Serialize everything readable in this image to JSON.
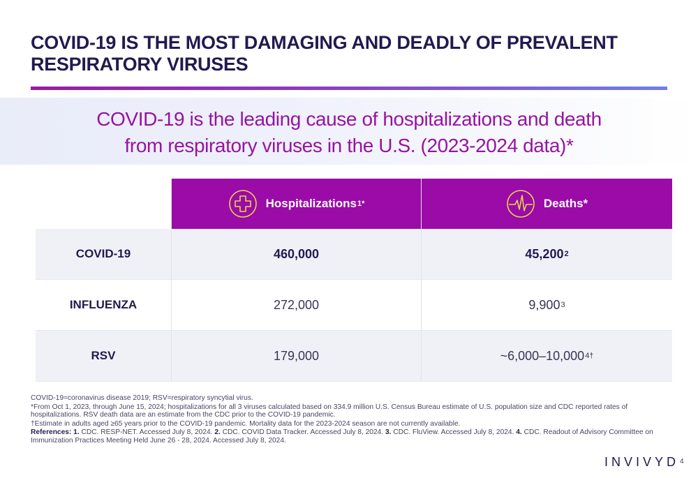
{
  "slide": {
    "title": "COVID-19 IS THE MOST DAMAGING AND DEADLY OF PREVALENT RESPIRATORY VIRUSES",
    "subtitle_line1": "COVID-19 is the leading cause of hospitalizations and death",
    "subtitle_line2": "from respiratory viruses in the U.S. (2023-2024 data)*",
    "colors": {
      "accent_purple": "#9a0ba8",
      "navy": "#23194f",
      "icon_yellow": "#e8d44a"
    }
  },
  "table": {
    "headers": [
      {
        "label": "Hospitalizations",
        "sup": "1*",
        "icon": "medical-cross-icon"
      },
      {
        "label": "Deaths*",
        "sup": "",
        "icon": "heartbeat-icon"
      }
    ],
    "rows": [
      {
        "virus": "COVID-19",
        "hospitalizations": "460,000",
        "deaths": "45,200",
        "deaths_sup": "2"
      },
      {
        "virus": "INFLUENZA",
        "hospitalizations": "272,000",
        "deaths": "9,900",
        "deaths_sup": "3"
      },
      {
        "virus": "RSV",
        "hospitalizations": "179,000",
        "deaths": "~6,000–10,000",
        "deaths_sup": "4†"
      }
    ]
  },
  "footnotes": {
    "abbrev": "COVID-19=coronavirus disease 2019; RSV=respiratory syncytial virus.",
    "star": "*From Oct 1, 2023, through June 15, 2024; hospitalizations for all 3 viruses calculated based on 334.9 million U.S. Census Bureau estimate of U.S. population size and CDC reported rates of hospitalizations. RSV death data are an estimate from the CDC prior to the COVID-19 pandemic.",
    "dagger": "†Estimate in adults aged ≥65 years prior to the COVID-19 pandemic. Mortality data for the 2023-2024 season are not currently available.",
    "references_label": "References:",
    "ref1_num": "1.",
    "ref1": "CDC. RESP-NET. Accessed July 8, 2024.",
    "ref2_num": "2.",
    "ref2": "CDC. COVID Data Tracker. Accessed July 8, 2024.",
    "ref3_num": "3.",
    "ref3": "CDC. FluView. Accessed July 8, 2024.",
    "ref4_num": "4.",
    "ref4": "CDC. Readout of Advisory Committee on Immunization Practices Meeting Held June 26 - 28, 2024. Accessed July 8, 2024."
  },
  "footer": {
    "logo": "INVIVYD",
    "page_number": "4"
  }
}
